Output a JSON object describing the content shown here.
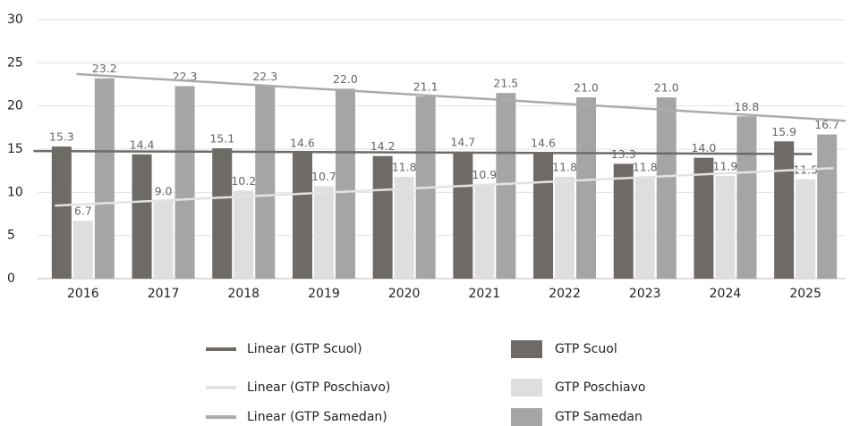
{
  "chart_data": {
    "type": "bar",
    "categories": [
      "2016",
      "2017",
      "2018",
      "2019",
      "2020",
      "2021",
      "2022",
      "2023",
      "2024",
      "2025"
    ],
    "series": [
      {
        "name": "GTP Scuol",
        "color": "#6e6a66",
        "trendline": "Linear (GTP Scuol)",
        "trendline_color": "#6e6a66",
        "values": [
          15.3,
          14.4,
          15.1,
          14.6,
          14.2,
          14.7,
          14.6,
          13.3,
          14.0,
          15.9
        ],
        "value_labels": [
          "15.3",
          "14.4",
          "15.1",
          "14.6",
          "14.2",
          "14.7",
          "14.6",
          "13.3",
          "14.0",
          "15.9"
        ]
      },
      {
        "name": "GTP Poschiavo",
        "color": "#dedede",
        "trendline": "Linear (GTP Poschiavo)",
        "trendline_color": "#e3e3e3",
        "values": [
          6.7,
          9.0,
          10.2,
          10.7,
          11.8,
          10.9,
          11.8,
          11.8,
          11.9,
          11.5
        ],
        "value_labels": [
          "6.7",
          "9.0",
          "10.2",
          "10.7",
          "11.8",
          "10.9",
          "11.8",
          "11.8",
          "11.9",
          "11.5"
        ]
      },
      {
        "name": "GTP Samedan",
        "color": "#a5a5a5",
        "trendline": "Linear (GTP Samedan)",
        "trendline_color": "#ababab",
        "values": [
          23.2,
          22.3,
          22.3,
          22.0,
          21.1,
          21.5,
          21.0,
          21.0,
          18.8,
          16.7
        ],
        "value_labels": [
          "23.2",
          "22.3",
          "22.3",
          "22.0",
          "21.1",
          "21.5",
          "21.0",
          "21.0",
          "18.8",
          "16.7"
        ]
      }
    ],
    "ylim": [
      0,
      30
    ],
    "yticks": [
      0,
      5,
      10,
      15,
      20,
      25,
      30
    ],
    "grid": true
  }
}
